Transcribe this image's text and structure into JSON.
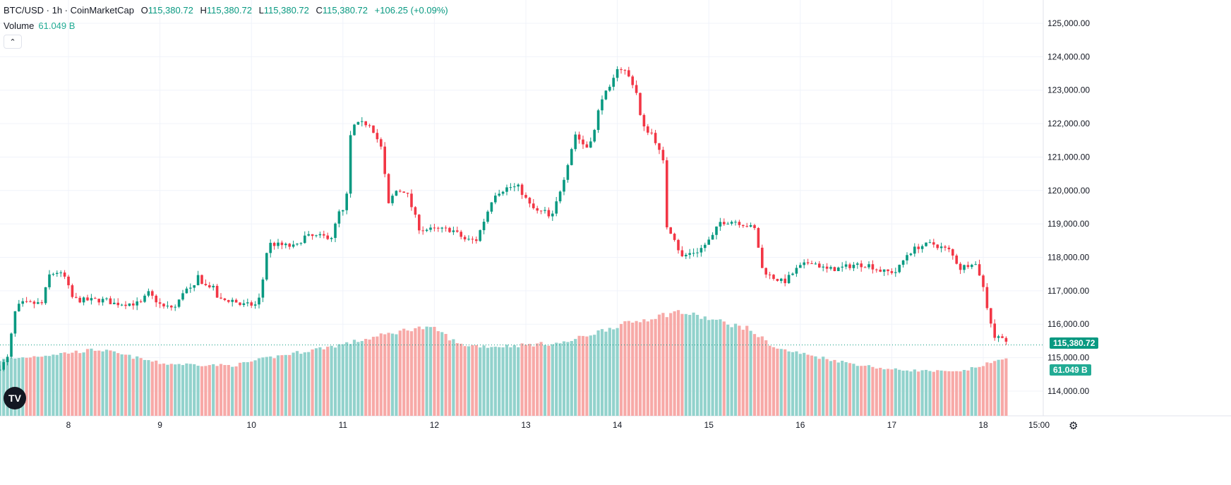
{
  "header": {
    "symbol": "BTC/USD · 1h · CoinMarketCap",
    "open_label": "O",
    "open": "115,380.72",
    "high_label": "H",
    "high": "115,380.72",
    "low_label": "L",
    "low": "115,380.72",
    "close_label": "C",
    "close": "115,380.72",
    "change": "+106.25 (+0.09%)",
    "volume_label": "Volume",
    "volume_value": "61.049 B",
    "collapse_icon": "chevron-up-icon"
  },
  "price_tag": "115,380.72",
  "volume_tag": "61.049 B",
  "colors": {
    "up": "#089981",
    "down": "#f23645",
    "vol_up": "#92d2cc",
    "vol_down": "#f7a9a7",
    "grid": "#f0f3fa"
  },
  "chart_data": {
    "type": "candlestick",
    "title": "BTC/USD · 1h · CoinMarketCap",
    "interval": "1h",
    "ylim": [
      113600,
      125400
    ],
    "grid": true,
    "y_ticks": [
      "114,000.00",
      "115,000.00",
      "116,000.00",
      "117,000.00",
      "118,000.00",
      "119,000.00",
      "120,000.00",
      "121,000.00",
      "122,000.00",
      "123,000.00",
      "124,000.00",
      "125,000.00"
    ],
    "x_ticks": [
      "8",
      "9",
      "10",
      "11",
      "12",
      "13",
      "14",
      "15",
      "16",
      "17",
      "18",
      "15:00"
    ],
    "close_trace": {
      "day": [
        7.25,
        7.33,
        7.42,
        7.48,
        7.71,
        7.79,
        7.87,
        7.98,
        8.02,
        8.1,
        8.41,
        8.49,
        8.79,
        8.87,
        9.03,
        9.18,
        9.26,
        9.37,
        9.41,
        9.49,
        9.57,
        9.64,
        9.8,
        9.88,
        10.07,
        10.12,
        10.18,
        10.49,
        10.57,
        10.88,
        10.96,
        11.03,
        11.09,
        11.19,
        11.3,
        11.42,
        11.5,
        11.57,
        11.69,
        11.77,
        11.84,
        12.19,
        12.34,
        12.46,
        12.58,
        12.65,
        12.81,
        12.92,
        13.04,
        13.12,
        13.23,
        13.27,
        13.35,
        13.42,
        13.54,
        13.66,
        13.77,
        13.81,
        13.93,
        14.0,
        14.08,
        14.2,
        14.27,
        14.39,
        14.5,
        14.54,
        14.62,
        14.7,
        14.77,
        14.89,
        14.97,
        15.04,
        15.12,
        15.28,
        15.43,
        15.51,
        15.58,
        15.66,
        15.82,
        15.97,
        16.12,
        16.28,
        16.43,
        16.59,
        16.74,
        16.9,
        17.05,
        17.17,
        17.28,
        17.44,
        17.63,
        17.75,
        17.9,
        17.98,
        18.05,
        18.13,
        18.21,
        18.27
      ],
      "close": [
        114720,
        114930,
        116410,
        116620,
        116620,
        117460,
        117570,
        117360,
        116830,
        116720,
        116720,
        116620,
        116620,
        116940,
        116510,
        116510,
        117040,
        117040,
        117460,
        117150,
        117150,
        116720,
        116720,
        116580,
        116580,
        117250,
        118410,
        118310,
        118620,
        118620,
        119360,
        119360,
        121900,
        122000,
        122000,
        121260,
        119570,
        119990,
        119990,
        119360,
        118830,
        118830,
        118520,
        118520,
        119360,
        119890,
        120100,
        120100,
        119570,
        119360,
        119360,
        119050,
        119790,
        120420,
        121690,
        121260,
        121900,
        122740,
        123060,
        123690,
        123590,
        123060,
        121900,
        121690,
        120840,
        118940,
        118620,
        117990,
        118100,
        118200,
        118410,
        118620,
        119050,
        119090,
        118940,
        118830,
        117670,
        117460,
        117250,
        117670,
        117890,
        117630,
        117670,
        117780,
        117780,
        117570,
        117570,
        118100,
        118310,
        118410,
        118200,
        117670,
        117890,
        117360,
        116410,
        115560,
        115670,
        115380.72
      ]
    },
    "volume_trace_b": {
      "day": [
        7.25,
        8.33,
        9.03,
        9.8,
        10.18,
        11.03,
        11.8,
        12.03,
        12.27,
        12.65,
        13.42,
        13.96,
        14.66,
        14.97,
        15.43,
        15.74,
        16.51,
        16.97,
        17.74,
        18.05,
        18.3
      ],
      "value": [
        58.8,
        70,
        55,
        53,
        61,
        76,
        93,
        91,
        75,
        73,
        77,
        94,
        110,
        103,
        92,
        71,
        56,
        49,
        46,
        55,
        62
      ]
    }
  }
}
